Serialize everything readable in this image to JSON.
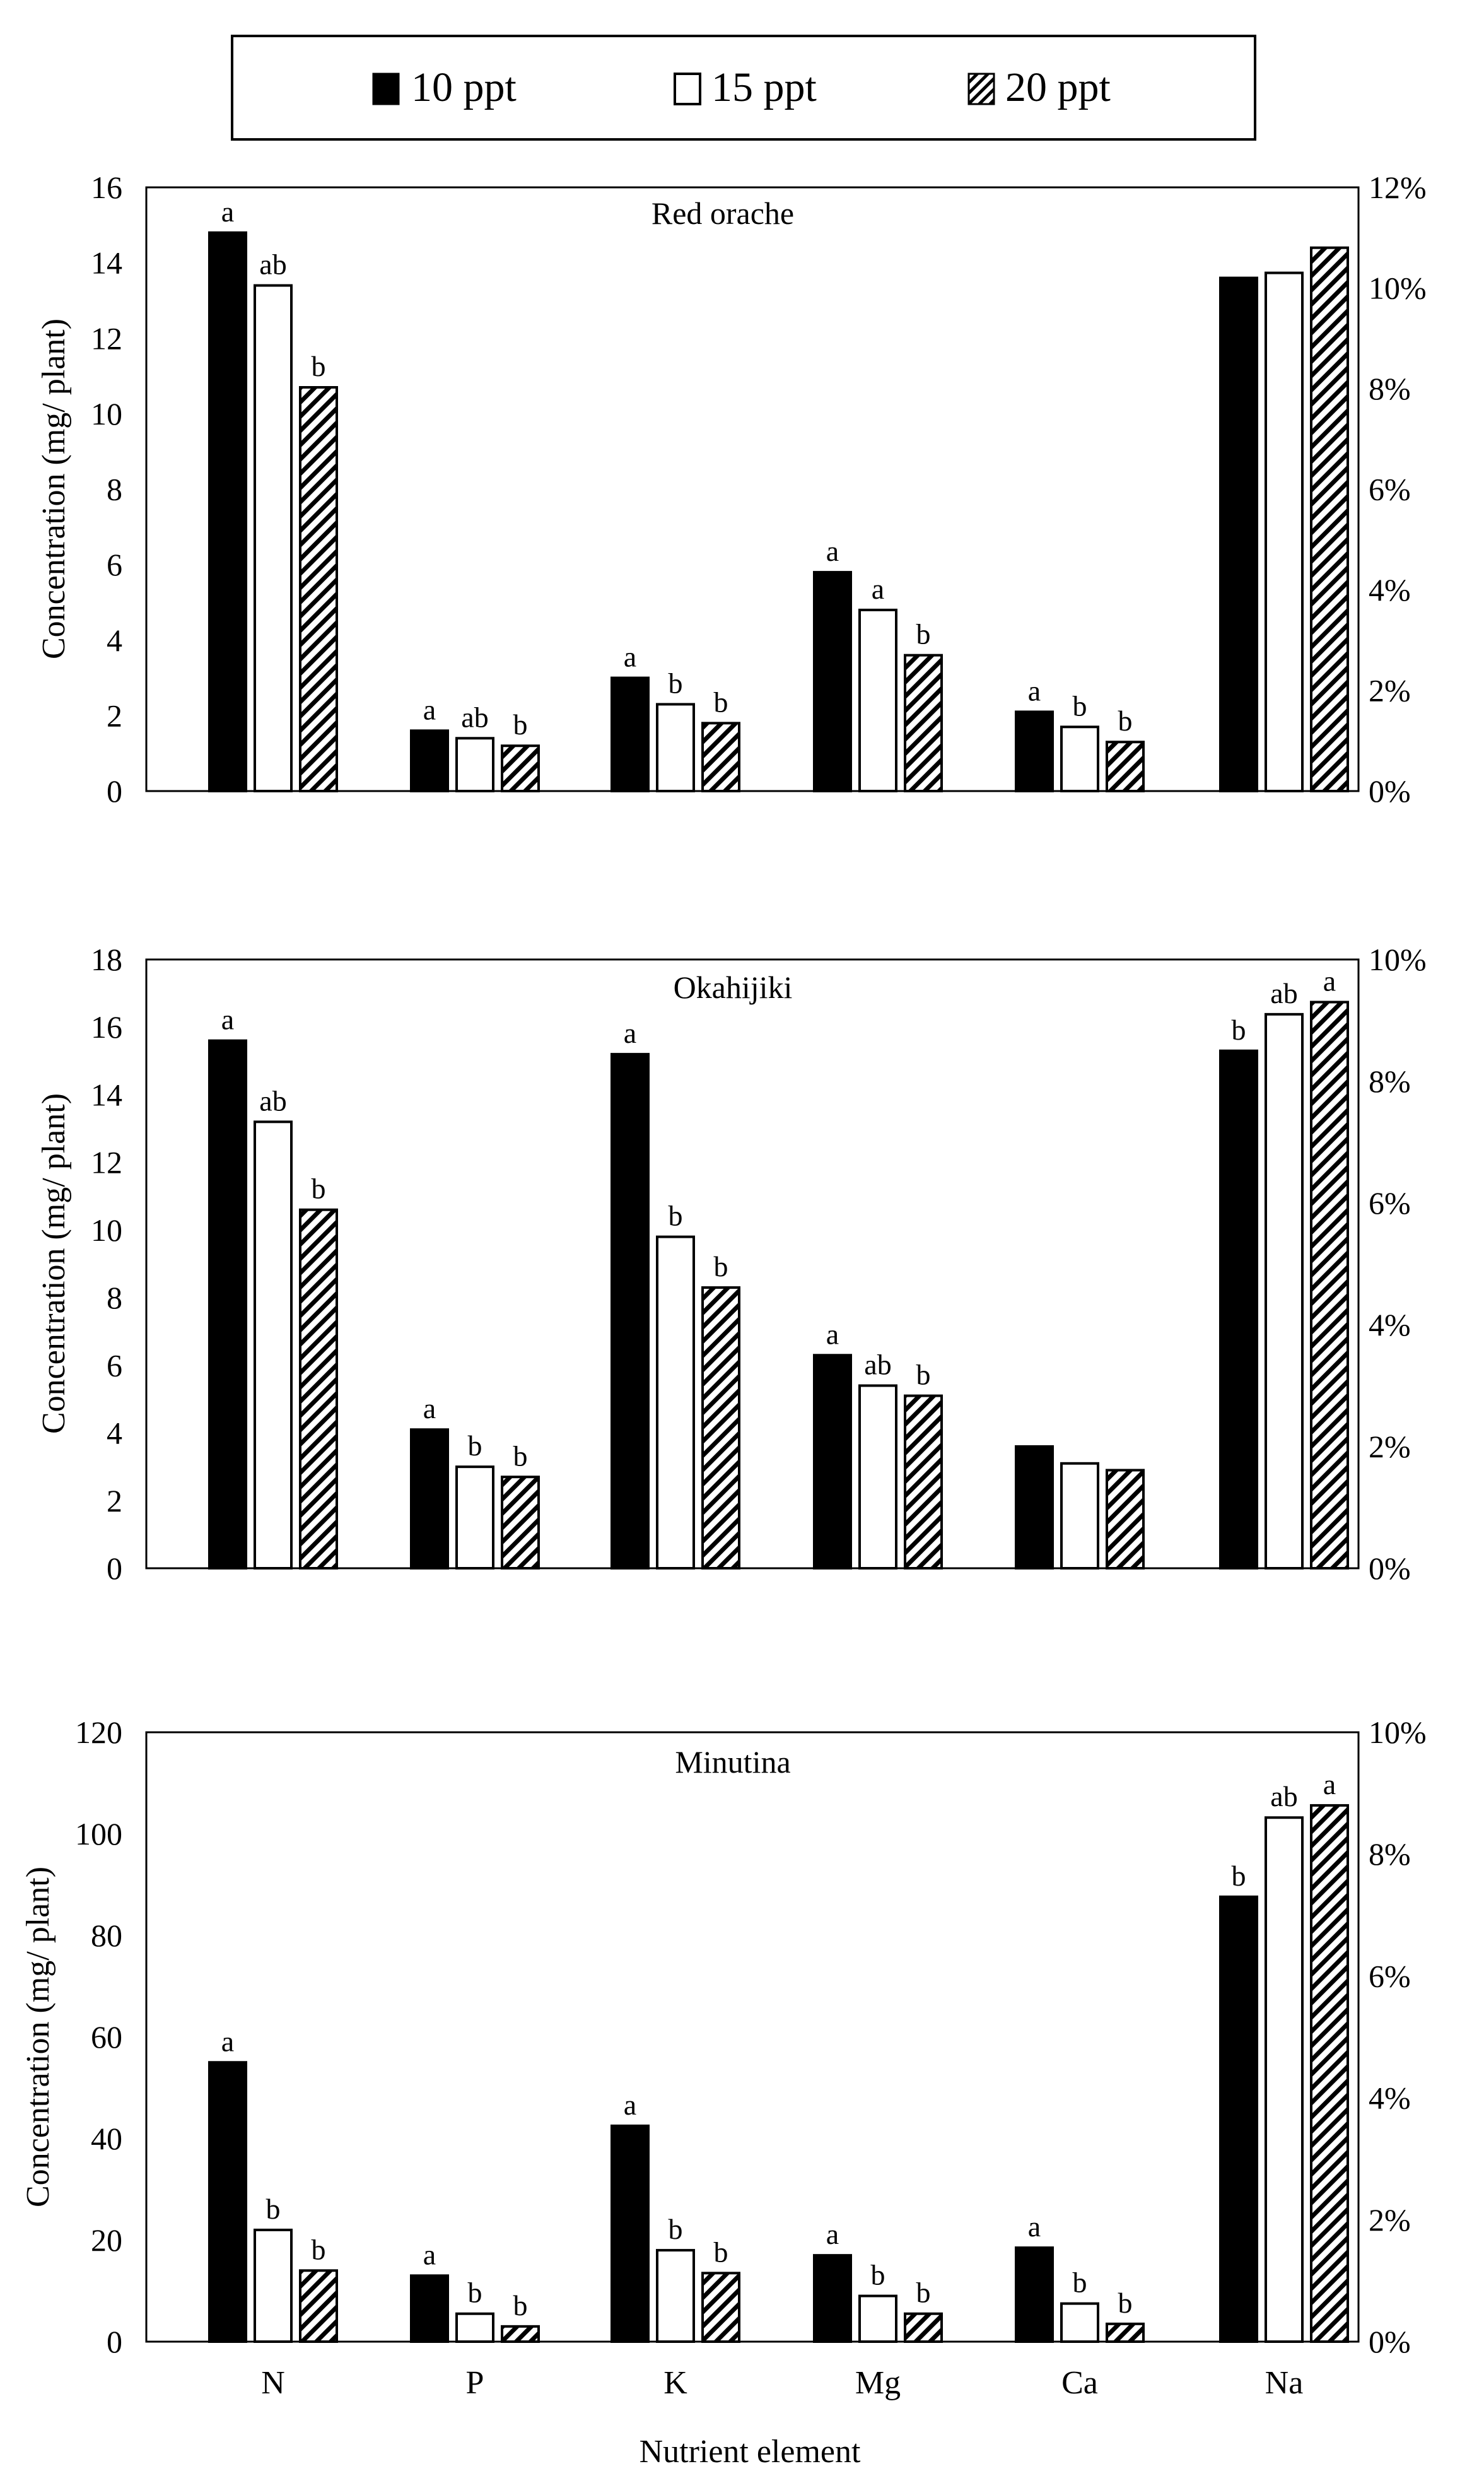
{
  "legend": {
    "items": [
      {
        "label": "10 ppt",
        "pattern": "solid"
      },
      {
        "label": "15 ppt",
        "pattern": "hollow"
      },
      {
        "label": "20 ppt",
        "pattern": "hatched"
      }
    ]
  },
  "x_axis_label": "Nutrient element",
  "colors": {
    "bar_fill": "#000000",
    "bar_stroke": "#000000",
    "background": "#ffffff"
  },
  "chart_data": [
    {
      "type": "bar",
      "title": "Red orache",
      "categories": [
        "N",
        "P",
        "K",
        "Mg",
        "Ca",
        "Na"
      ],
      "ylabel": "Concentration  (mg/ plant)",
      "ylim": [
        0,
        16
      ],
      "yticks": [
        0,
        2,
        4,
        6,
        8,
        10,
        12,
        14,
        16
      ],
      "y2lim": [
        0,
        12
      ],
      "y2ticks": [
        "0%",
        "2%",
        "4%",
        "6%",
        "8%",
        "10%",
        "12%"
      ],
      "series": [
        {
          "name": "10 ppt",
          "values": [
            14.8,
            1.6,
            3.0,
            5.8,
            2.1,
            10.2
          ],
          "labels": [
            "a",
            "a",
            "a",
            "a",
            "a",
            ""
          ]
        },
        {
          "name": "15 ppt",
          "values": [
            13.4,
            1.4,
            2.3,
            4.8,
            1.7,
            10.3
          ],
          "labels": [
            "ab",
            "ab",
            "b",
            "a",
            "b",
            ""
          ]
        },
        {
          "name": "20 ppt",
          "values": [
            10.7,
            1.2,
            1.8,
            3.6,
            1.3,
            10.8
          ],
          "labels": [
            "b",
            "b",
            "b",
            "b",
            "b",
            ""
          ]
        }
      ],
      "secondary_axis_categories": [
        "Na"
      ]
    },
    {
      "type": "bar",
      "title": "Okahijiki",
      "categories": [
        "N",
        "P",
        "K",
        "Mg",
        "Ca",
        "Na"
      ],
      "ylabel": "Concentration  (mg/ plant)",
      "ylim": [
        0,
        18
      ],
      "yticks": [
        0,
        2,
        4,
        6,
        8,
        10,
        12,
        14,
        16,
        18
      ],
      "y2lim": [
        0,
        10
      ],
      "y2ticks": [
        "0%",
        "2%",
        "4%",
        "6%",
        "8%",
        "10%"
      ],
      "series": [
        {
          "name": "10 ppt",
          "values": [
            15.6,
            4.1,
            15.2,
            6.3,
            3.6,
            8.5
          ],
          "labels": [
            "a",
            "a",
            "a",
            "a",
            "",
            "b"
          ]
        },
        {
          "name": "15 ppt",
          "values": [
            13.2,
            3.0,
            9.8,
            5.4,
            3.1,
            9.1
          ],
          "labels": [
            "ab",
            "b",
            "b",
            "ab",
            "",
            "ab"
          ]
        },
        {
          "name": "20 ppt",
          "values": [
            10.6,
            2.7,
            8.3,
            5.1,
            2.9,
            9.3
          ],
          "labels": [
            "b",
            "b",
            "b",
            "b",
            "",
            "a"
          ]
        }
      ],
      "secondary_axis_categories": [
        "Na"
      ]
    },
    {
      "type": "bar",
      "title": "Minutina",
      "categories": [
        "N",
        "P",
        "K",
        "Mg",
        "Ca",
        "Na"
      ],
      "ylabel": "Concentration  (mg/ plant)",
      "ylim": [
        0,
        120
      ],
      "yticks": [
        0,
        20,
        40,
        60,
        80,
        100,
        120
      ],
      "y2lim": [
        0,
        10
      ],
      "y2ticks": [
        "0%",
        "2%",
        "4%",
        "6%",
        "8%",
        "10%"
      ],
      "series": [
        {
          "name": "10 ppt",
          "values": [
            55,
            13,
            42.5,
            17,
            18.5,
            7.3
          ],
          "labels": [
            "a",
            "a",
            "a",
            "a",
            "a",
            "b"
          ]
        },
        {
          "name": "15 ppt",
          "values": [
            22,
            5.5,
            18,
            9,
            7.5,
            8.6
          ],
          "labels": [
            "b",
            "b",
            "b",
            "b",
            "b",
            "ab"
          ]
        },
        {
          "name": "20 ppt",
          "values": [
            14,
            3,
            13.5,
            5.5,
            3.5,
            8.8
          ],
          "labels": [
            "b",
            "b",
            "b",
            "b",
            "b",
            "a"
          ]
        }
      ],
      "secondary_axis_categories": [
        "Na"
      ]
    }
  ]
}
